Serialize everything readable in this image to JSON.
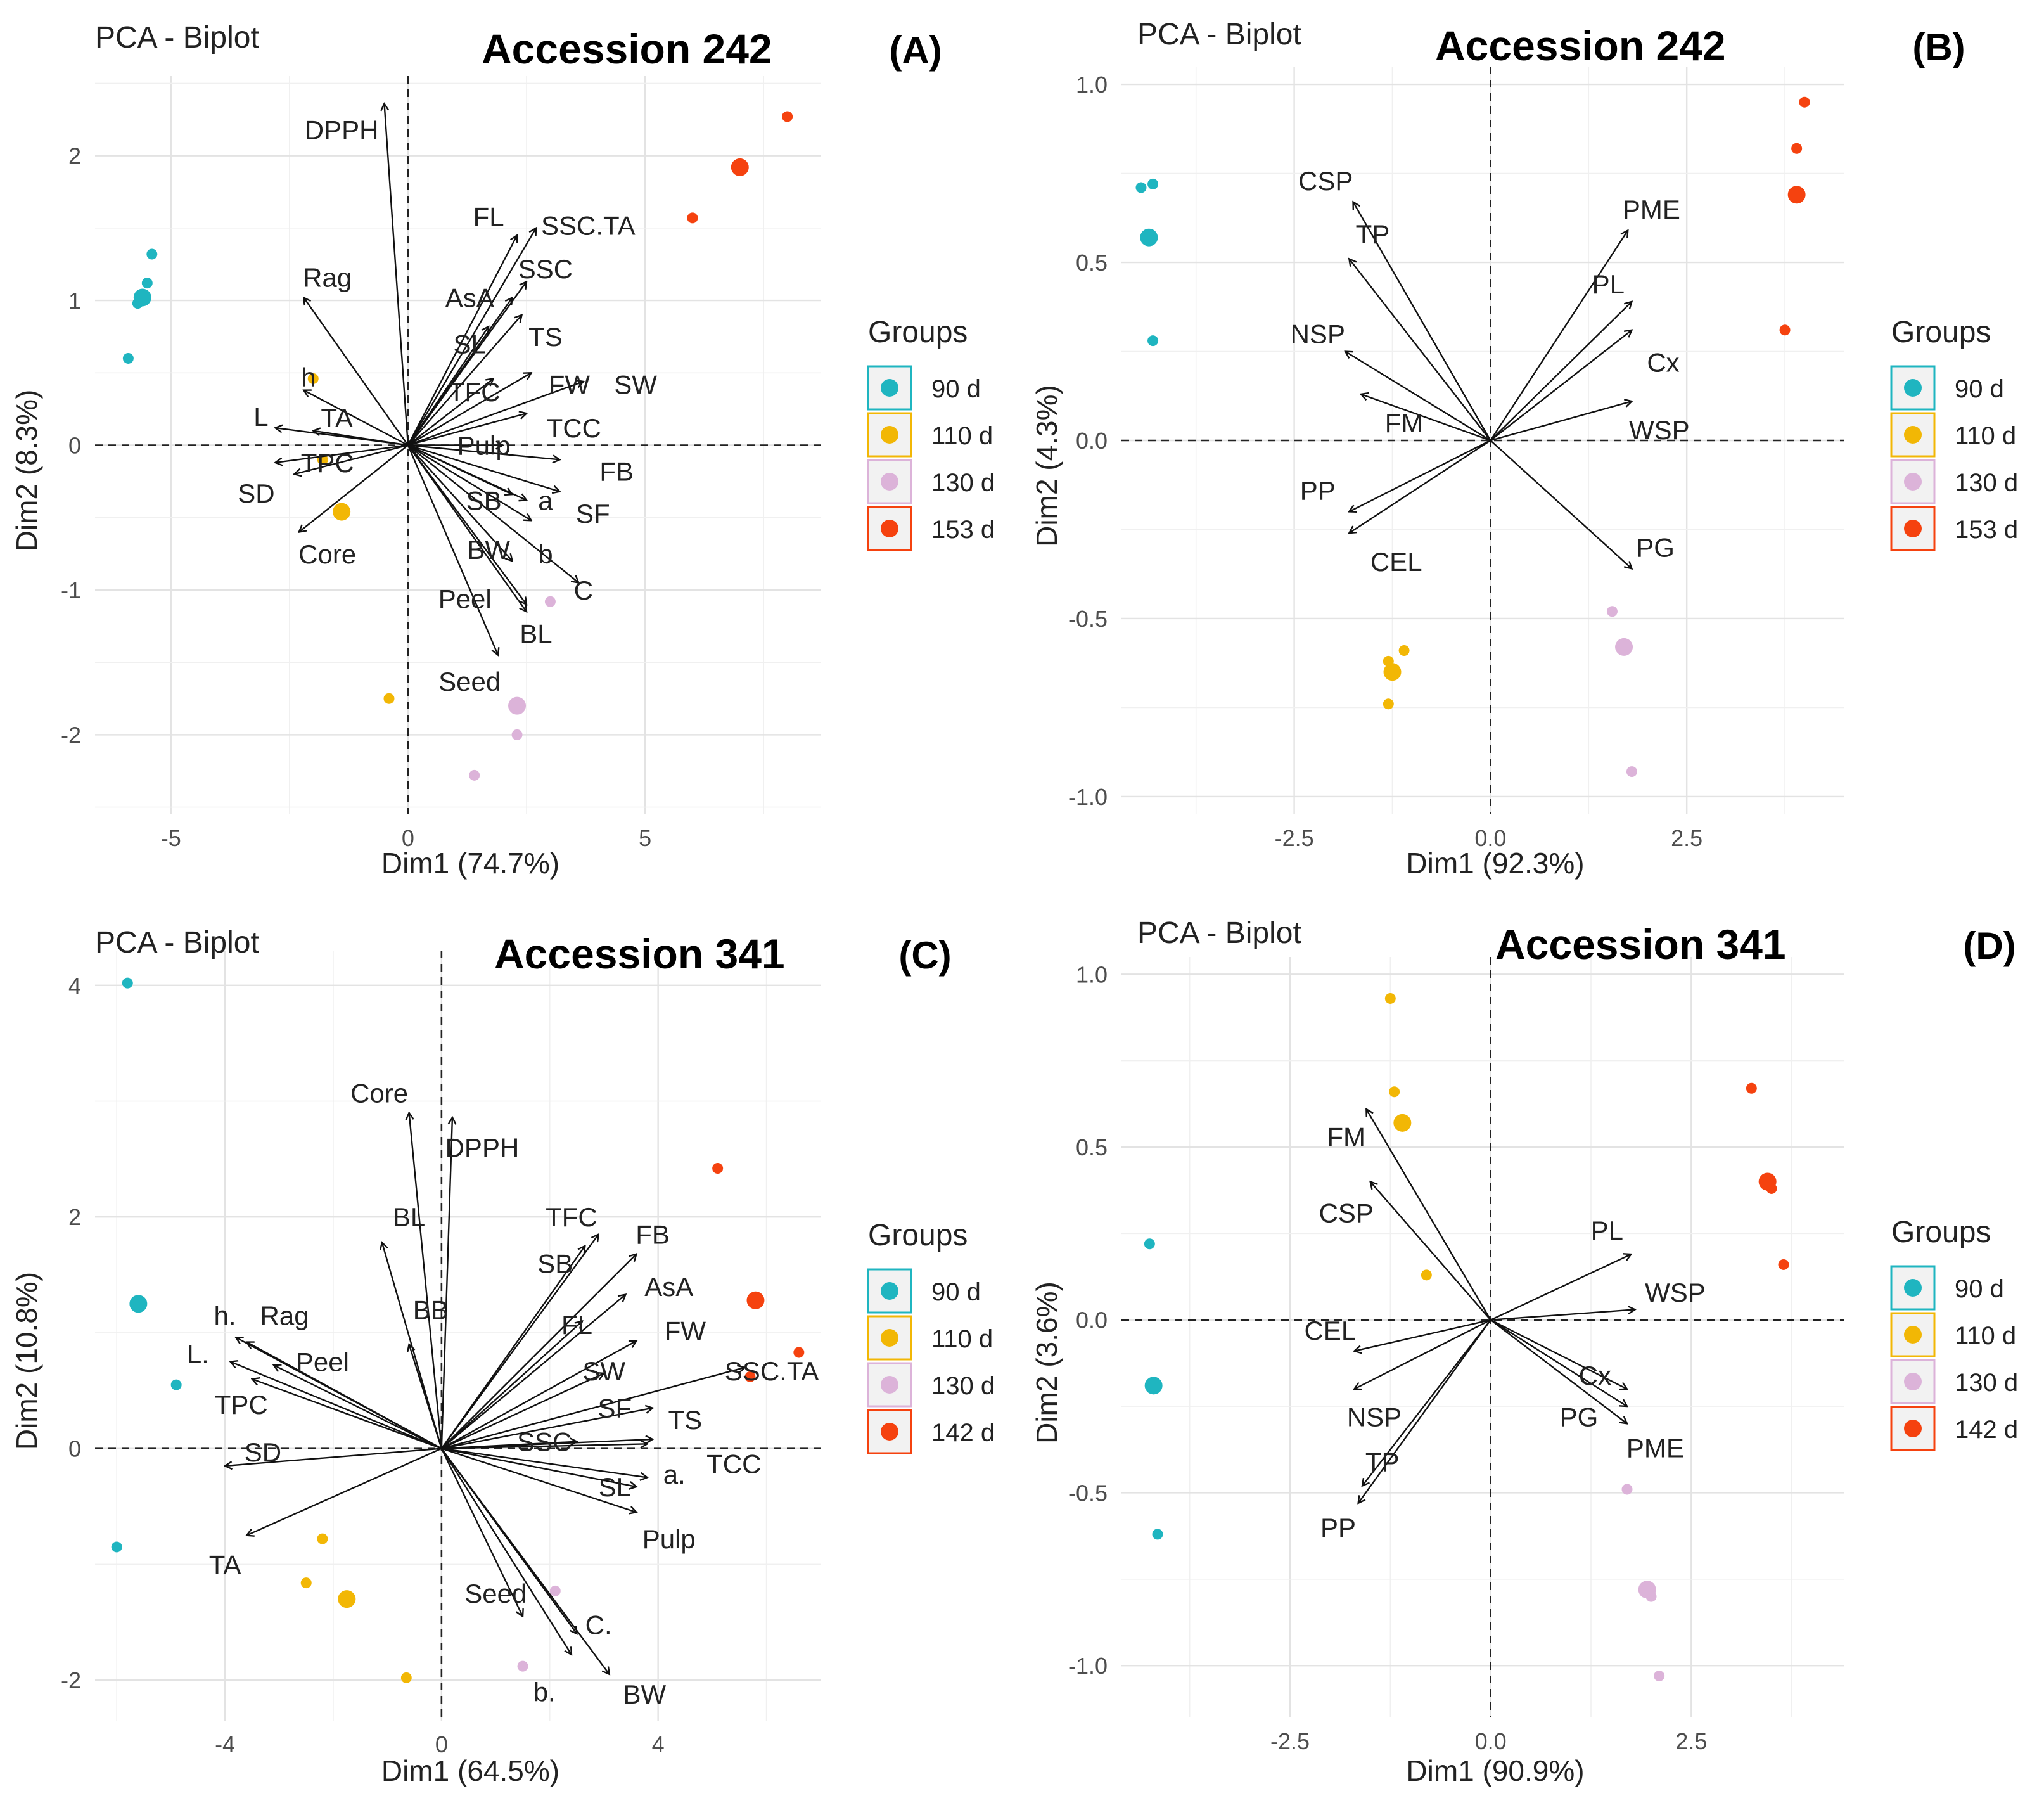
{
  "chart_data": [
    {
      "panel": "(A)",
      "type": "scatter",
      "title": "PCA - Biplot",
      "subtitle": "Accession 242",
      "xlabel": "Dim1 (74.7%)",
      "ylabel": "Dim2 (8.3%)",
      "xlim": [
        -6.6,
        8.7
      ],
      "ylim": [
        -2.55,
        2.55
      ],
      "xticks": [
        -5,
        0,
        5
      ],
      "yticks": [
        -2,
        -1,
        0,
        1,
        2
      ],
      "xtick_labels": [
        "-5",
        "0",
        "5"
      ],
      "ytick_labels": [
        "-2",
        "-1",
        "0",
        "1",
        "2"
      ],
      "grid": true,
      "legend": {
        "title": "Groups",
        "entries": [
          "90 d",
          "110 d",
          "130 d",
          "153 d"
        ],
        "position": "right"
      },
      "colors": [
        "#1fb5c0",
        "#f2b705",
        "#dcb3d9",
        "#f5420f"
      ],
      "points": [
        {
          "group": 0,
          "x": -5.6,
          "y": 1.02,
          "size": "mean"
        },
        {
          "group": 0,
          "x": -5.4,
          "y": 1.32
        },
        {
          "group": 0,
          "x": -5.5,
          "y": 1.12
        },
        {
          "group": 0,
          "x": -5.7,
          "y": 0.98
        },
        {
          "group": 0,
          "x": -5.9,
          "y": 0.6
        },
        {
          "group": 1,
          "x": -1.4,
          "y": -0.46,
          "size": "mean"
        },
        {
          "group": 1,
          "x": -2.0,
          "y": 0.46
        },
        {
          "group": 1,
          "x": -1.8,
          "y": -0.1
        },
        {
          "group": 1,
          "x": -0.4,
          "y": -1.75
        },
        {
          "group": 2,
          "x": 2.3,
          "y": -1.8,
          "size": "mean"
        },
        {
          "group": 2,
          "x": 3.0,
          "y": -1.08
        },
        {
          "group": 2,
          "x": 2.3,
          "y": -2.0
        },
        {
          "group": 2,
          "x": 1.4,
          "y": -2.28
        },
        {
          "group": 3,
          "x": 7.0,
          "y": 1.92,
          "size": "mean"
        },
        {
          "group": 3,
          "x": 8.0,
          "y": 2.27
        },
        {
          "group": 3,
          "x": 6.0,
          "y": 1.57
        }
      ],
      "vectors": [
        {
          "label": "DPPH",
          "x": -0.5,
          "y": 2.36,
          "lx": -1.4,
          "ly": 2.18
        },
        {
          "label": "FL",
          "x": 2.3,
          "y": 1.45,
          "lx": 1.7,
          "ly": 1.58
        },
        {
          "label": "SSC.TA",
          "x": 2.7,
          "y": 1.5,
          "lx": 3.8,
          "ly": 1.52
        },
        {
          "label": "SSC",
          "x": 2.5,
          "y": 1.13,
          "lx": 2.9,
          "ly": 1.22
        },
        {
          "label": "AsA",
          "x": 2.2,
          "y": 1.02,
          "lx": 1.3,
          "ly": 1.02
        },
        {
          "label": "Rag",
          "x": -2.2,
          "y": 1.02,
          "lx": -1.7,
          "ly": 1.16
        },
        {
          "label": "SL",
          "x": 1.7,
          "y": 0.82,
          "lx": 1.3,
          "ly": 0.7
        },
        {
          "label": "TS",
          "x": 2.4,
          "y": 0.9,
          "lx": 2.9,
          "ly": 0.75
        },
        {
          "label": "TFC",
          "x": 1.8,
          "y": 0.46,
          "lx": 1.4,
          "ly": 0.37
        },
        {
          "label": "FW",
          "x": 2.6,
          "y": 0.5,
          "lx": 3.4,
          "ly": 0.42
        },
        {
          "label": "SW",
          "x": 3.7,
          "y": 0.44,
          "lx": 4.8,
          "ly": 0.42
        },
        {
          "label": "h",
          "x": -2.2,
          "y": 0.38,
          "lx": -2.1,
          "ly": 0.47
        },
        {
          "label": "L",
          "x": -2.8,
          "y": 0.12,
          "lx": -3.1,
          "ly": 0.2
        },
        {
          "label": "TA",
          "x": -2.0,
          "y": 0.1,
          "lx": -1.5,
          "ly": 0.19
        },
        {
          "label": "TCC",
          "x": 2.5,
          "y": 0.22,
          "lx": 3.5,
          "ly": 0.12
        },
        {
          "label": "Pulp",
          "x": 2.0,
          "y": 0.0,
          "lx": 1.6,
          "ly": 0.0
        },
        {
          "label": "TPC",
          "x": -2.8,
          "y": -0.12,
          "lx": -1.7,
          "ly": -0.12
        },
        {
          "label": "FB",
          "x": 3.2,
          "y": -0.1,
          "lx": 4.4,
          "ly": -0.18
        },
        {
          "label": "SD",
          "x": -2.4,
          "y": -0.2,
          "lx": -3.2,
          "ly": -0.33
        },
        {
          "label": "SB",
          "x": 2.2,
          "y": -0.34,
          "lx": 1.6,
          "ly": -0.38
        },
        {
          "label": "a",
          "x": 2.5,
          "y": -0.38,
          "lx": 2.9,
          "ly": -0.38
        },
        {
          "label": "SF",
          "x": 3.2,
          "y": -0.32,
          "lx": 3.9,
          "ly": -0.47
        },
        {
          "label": "Core",
          "x": -2.3,
          "y": -0.6,
          "lx": -1.7,
          "ly": -0.75
        },
        {
          "label": "BW",
          "x": 2.2,
          "y": -0.8,
          "lx": 1.7,
          "ly": -0.72
        },
        {
          "label": "b",
          "x": 2.6,
          "y": -0.52,
          "lx": 2.9,
          "ly": -0.75
        },
        {
          "label": "C",
          "x": 3.6,
          "y": -0.95,
          "lx": 3.7,
          "ly": -1.0
        },
        {
          "label": "Peel",
          "x": 2.5,
          "y": -1.1,
          "lx": 1.2,
          "ly": -1.06
        },
        {
          "label": "BL",
          "x": 2.5,
          "y": -1.15,
          "lx": 2.7,
          "ly": -1.3
        },
        {
          "label": "Seed",
          "x": 1.9,
          "y": -1.45,
          "lx": 1.3,
          "ly": -1.63
        }
      ]
    },
    {
      "panel": "(B)",
      "type": "scatter",
      "title": "PCA - Biplot",
      "subtitle": "Accession 242",
      "xlabel": "Dim1 (92.3%)",
      "ylabel": "Dim2 (4.3%)",
      "xlim": [
        -4.7,
        4.5
      ],
      "ylim": [
        -1.05,
        1.05
      ],
      "xticks": [
        -2.5,
        0,
        2.5
      ],
      "yticks": [
        -1.0,
        -0.5,
        0.0,
        0.5,
        1.0
      ],
      "xtick_labels": [
        "-2.5",
        "0.0",
        "2.5"
      ],
      "ytick_labels": [
        "-1.0",
        "-0.5",
        "0.0",
        "0.5",
        "1.0"
      ],
      "grid": true,
      "legend": {
        "title": "Groups",
        "entries": [
          "90 d",
          "110 d",
          "130 d",
          "153 d"
        ],
        "position": "right"
      },
      "colors": [
        "#1fb5c0",
        "#f2b705",
        "#dcb3d9",
        "#f5420f"
      ],
      "points": [
        {
          "group": 0,
          "x": -4.35,
          "y": 0.57,
          "size": "mean"
        },
        {
          "group": 0,
          "x": -4.45,
          "y": 0.71
        },
        {
          "group": 0,
          "x": -4.3,
          "y": 0.72
        },
        {
          "group": 0,
          "x": -4.3,
          "y": 0.28
        },
        {
          "group": 1,
          "x": -1.25,
          "y": -0.65,
          "size": "mean"
        },
        {
          "group": 1,
          "x": -1.3,
          "y": -0.62
        },
        {
          "group": 1,
          "x": -1.1,
          "y": -0.59
        },
        {
          "group": 1,
          "x": -1.3,
          "y": -0.74
        },
        {
          "group": 2,
          "x": 1.7,
          "y": -0.58,
          "size": "mean"
        },
        {
          "group": 2,
          "x": 1.55,
          "y": -0.48
        },
        {
          "group": 2,
          "x": 1.8,
          "y": -0.93
        },
        {
          "group": 3,
          "x": 3.9,
          "y": 0.69,
          "size": "mean"
        },
        {
          "group": 3,
          "x": 4.0,
          "y": 0.95
        },
        {
          "group": 3,
          "x": 3.9,
          "y": 0.82
        },
        {
          "group": 3,
          "x": 3.75,
          "y": 0.31
        }
      ],
      "vectors": [
        {
          "label": "CSP",
          "x": -1.75,
          "y": 0.67,
          "lx": -2.1,
          "ly": 0.73
        },
        {
          "label": "TP",
          "x": -1.8,
          "y": 0.51,
          "lx": -1.5,
          "ly": 0.58
        },
        {
          "label": "NSP",
          "x": -1.85,
          "y": 0.25,
          "lx": -2.2,
          "ly": 0.3
        },
        {
          "label": "FM",
          "x": -1.65,
          "y": 0.13,
          "lx": -1.1,
          "ly": 0.05
        },
        {
          "label": "PP",
          "x": -1.8,
          "y": -0.2,
          "lx": -2.2,
          "ly": -0.14
        },
        {
          "label": "CEL",
          "x": -1.8,
          "y": -0.26,
          "lx": -1.2,
          "ly": -0.34
        },
        {
          "label": "PME",
          "x": 1.75,
          "y": 0.59,
          "lx": 2.05,
          "ly": 0.65
        },
        {
          "label": "PL",
          "x": 1.8,
          "y": 0.39,
          "lx": 1.5,
          "ly": 0.44
        },
        {
          "label": "Cx",
          "x": 1.8,
          "y": 0.31,
          "lx": 2.2,
          "ly": 0.22
        },
        {
          "label": "WSP",
          "x": 1.8,
          "y": 0.11,
          "lx": 2.15,
          "ly": 0.03
        },
        {
          "label": "PG",
          "x": 1.8,
          "y": -0.36,
          "lx": 2.1,
          "ly": -0.3
        }
      ]
    },
    {
      "panel": "(C)",
      "type": "scatter",
      "title": "PCA - Biplot",
      "subtitle": "Accession 341",
      "xlabel": "Dim1 (64.5%)",
      "ylabel": "Dim2 (10.8%)",
      "xlim": [
        -6.4,
        7.0
      ],
      "ylim": [
        -2.35,
        4.3
      ],
      "xticks": [
        -4,
        0,
        4
      ],
      "yticks": [
        -2,
        0,
        2,
        4
      ],
      "xtick_labels": [
        "-4",
        "0",
        "4"
      ],
      "ytick_labels": [
        "-2",
        "0",
        "2",
        "4"
      ],
      "grid": true,
      "legend": {
        "title": "Groups",
        "entries": [
          "90 d",
          "110 d",
          "130 d",
          "142 d"
        ],
        "position": "right"
      },
      "colors": [
        "#1fb5c0",
        "#f2b705",
        "#dcb3d9",
        "#f5420f"
      ],
      "points": [
        {
          "group": 0,
          "x": -5.6,
          "y": 1.25,
          "size": "mean"
        },
        {
          "group": 0,
          "x": -5.8,
          "y": 4.02
        },
        {
          "group": 0,
          "x": -4.9,
          "y": 0.55
        },
        {
          "group": 0,
          "x": -6.0,
          "y": -0.85
        },
        {
          "group": 1,
          "x": -1.75,
          "y": -1.3,
          "size": "mean"
        },
        {
          "group": 1,
          "x": -2.2,
          "y": -0.78
        },
        {
          "group": 1,
          "x": -2.5,
          "y": -1.16
        },
        {
          "group": 1,
          "x": -0.65,
          "y": -1.98
        },
        {
          "group": 2,
          "x": 1.5,
          "y": -1.88
        },
        {
          "group": 2,
          "x": 2.1,
          "y": -1.23
        },
        {
          "group": 3,
          "x": 5.8,
          "y": 1.28,
          "size": "mean"
        },
        {
          "group": 3,
          "x": 5.1,
          "y": 2.42
        },
        {
          "group": 3,
          "x": 6.6,
          "y": 0.83
        },
        {
          "group": 3,
          "x": 5.7,
          "y": 0.62
        }
      ],
      "vectors": [
        {
          "label": "Core",
          "x": -0.6,
          "y": 2.9,
          "lx": -1.15,
          "ly": 3.07
        },
        {
          "label": "DPPH",
          "x": 0.2,
          "y": 2.86,
          "lx": 0.75,
          "ly": 2.6
        },
        {
          "label": "BL",
          "x": -1.1,
          "y": 1.78,
          "lx": -0.6,
          "ly": 2.0
        },
        {
          "label": "BB",
          "x": -0.6,
          "y": 0.9,
          "lx": -0.2,
          "ly": 1.2
        },
        {
          "label": "TFC",
          "x": 2.65,
          "y": 1.75,
          "lx": 2.4,
          "ly": 2.0
        },
        {
          "label": "SB",
          "x": 2.9,
          "y": 1.85,
          "lx": 2.1,
          "ly": 1.6
        },
        {
          "label": "FB",
          "x": 3.6,
          "y": 1.68,
          "lx": 3.9,
          "ly": 1.85
        },
        {
          "label": "AsA",
          "x": 3.4,
          "y": 1.33,
          "lx": 4.2,
          "ly": 1.4
        },
        {
          "label": "FL",
          "x": 2.6,
          "y": 1.1,
          "lx": 2.5,
          "ly": 1.07
        },
        {
          "label": "FW",
          "x": 3.6,
          "y": 0.93,
          "lx": 4.5,
          "ly": 1.02
        },
        {
          "label": "SW",
          "x": 3.0,
          "y": 0.65,
          "lx": 3.0,
          "ly": 0.67
        },
        {
          "label": "SSC.TA",
          "x": 5.6,
          "y": 0.7,
          "lx": 6.1,
          "ly": 0.67
        },
        {
          "label": "SF",
          "x": 3.9,
          "y": 0.35,
          "lx": 3.2,
          "ly": 0.35
        },
        {
          "label": "TS",
          "x": 3.9,
          "y": 0.08,
          "lx": 4.5,
          "ly": 0.25
        },
        {
          "label": "SSC",
          "x": 2.5,
          "y": 0.06,
          "lx": 1.9,
          "ly": 0.06
        },
        {
          "label": "TCC",
          "x": 3.8,
          "y": 0.04,
          "lx": 5.4,
          "ly": -0.13
        },
        {
          "label": "a.",
          "x": 3.8,
          "y": -0.25,
          "lx": 4.3,
          "ly": -0.22
        },
        {
          "label": "SL",
          "x": 3.6,
          "y": -0.33,
          "lx": 3.2,
          "ly": -0.33
        },
        {
          "label": "Pulp",
          "x": 3.6,
          "y": -0.55,
          "lx": 4.2,
          "ly": -0.78
        },
        {
          "label": "Seed",
          "x": 1.5,
          "y": -1.45,
          "lx": 1.0,
          "ly": -1.25
        },
        {
          "label": "C.",
          "x": 2.5,
          "y": -1.6,
          "lx": 2.9,
          "ly": -1.52
        },
        {
          "label": "b.",
          "x": 2.4,
          "y": -1.78,
          "lx": 1.9,
          "ly": -2.1
        },
        {
          "label": "BW",
          "x": 3.1,
          "y": -1.95,
          "lx": 3.75,
          "ly": -2.12
        },
        {
          "label": "h.",
          "x": -3.8,
          "y": 0.96,
          "lx": -4.0,
          "ly": 1.15
        },
        {
          "label": "Rag",
          "x": -3.6,
          "y": 0.92,
          "lx": -2.9,
          "ly": 1.15
        },
        {
          "label": "L.",
          "x": -3.9,
          "y": 0.75,
          "lx": -4.5,
          "ly": 0.82
        },
        {
          "label": "Peel",
          "x": -3.1,
          "y": 0.72,
          "lx": -2.2,
          "ly": 0.75
        },
        {
          "label": "TPC",
          "x": -3.5,
          "y": 0.6,
          "lx": -3.7,
          "ly": 0.38
        },
        {
          "label": "SD",
          "x": -4.0,
          "y": -0.15,
          "lx": -3.3,
          "ly": -0.03
        },
        {
          "label": "TA",
          "x": -3.6,
          "y": -0.75,
          "lx": -4.0,
          "ly": -1.0
        }
      ]
    },
    {
      "panel": "(D)",
      "type": "scatter",
      "title": "PCA - Biplot",
      "subtitle": "Accession 341",
      "xlabel": "Dim1 (90.9%)",
      "ylabel": "Dim2 (3.6%)",
      "xlim": [
        -4.6,
        4.4
      ],
      "ylim": [
        -1.15,
        1.05
      ],
      "xticks": [
        -2.5,
        0,
        2.5
      ],
      "yticks": [
        -1.0,
        -0.5,
        0.0,
        0.5,
        1.0
      ],
      "xtick_labels": [
        "-2.5",
        "0.0",
        "2.5"
      ],
      "ytick_labels": [
        "-1.0",
        "-0.5",
        "0.0",
        "0.5",
        "1.0"
      ],
      "grid": true,
      "legend": {
        "title": "Groups",
        "entries": [
          "90 d",
          "110 d",
          "130 d",
          "142 d"
        ],
        "position": "right"
      },
      "colors": [
        "#1fb5c0",
        "#f2b705",
        "#dcb3d9",
        "#f5420f"
      ],
      "points": [
        {
          "group": 0,
          "x": -4.2,
          "y": -0.19,
          "size": "mean"
        },
        {
          "group": 0,
          "x": -4.25,
          "y": 0.22
        },
        {
          "group": 0,
          "x": -4.15,
          "y": -0.62
        },
        {
          "group": 1,
          "x": -1.1,
          "y": 0.57,
          "size": "mean"
        },
        {
          "group": 1,
          "x": -1.25,
          "y": 0.93
        },
        {
          "group": 1,
          "x": -1.2,
          "y": 0.66
        },
        {
          "group": 1,
          "x": -0.8,
          "y": 0.13
        },
        {
          "group": 2,
          "x": 1.95,
          "y": -0.78,
          "size": "mean"
        },
        {
          "group": 2,
          "x": 1.7,
          "y": -0.49
        },
        {
          "group": 2,
          "x": 2.0,
          "y": -0.8
        },
        {
          "group": 2,
          "x": 2.1,
          "y": -1.03
        },
        {
          "group": 3,
          "x": 3.45,
          "y": 0.4,
          "size": "mean"
        },
        {
          "group": 3,
          "x": 3.25,
          "y": 0.67
        },
        {
          "group": 3,
          "x": 3.5,
          "y": 0.38
        },
        {
          "group": 3,
          "x": 3.65,
          "y": 0.16
        }
      ],
      "vectors": [
        {
          "label": "FM",
          "x": -1.55,
          "y": 0.61,
          "lx": -1.8,
          "ly": 0.53
        },
        {
          "label": "CSP",
          "x": -1.5,
          "y": 0.4,
          "lx": -1.8,
          "ly": 0.31
        },
        {
          "label": "CEL",
          "x": -1.7,
          "y": -0.09,
          "lx": -2.0,
          "ly": -0.03
        },
        {
          "label": "NSP",
          "x": -1.7,
          "y": -0.2,
          "lx": -1.45,
          "ly": -0.28
        },
        {
          "label": "TP",
          "x": -1.6,
          "y": -0.48,
          "lx": -1.35,
          "ly": -0.41
        },
        {
          "label": "PP",
          "x": -1.65,
          "y": -0.53,
          "lx": -1.9,
          "ly": -0.6
        },
        {
          "label": "PL",
          "x": 1.75,
          "y": 0.19,
          "lx": 1.45,
          "ly": 0.26
        },
        {
          "label": "WSP",
          "x": 1.8,
          "y": 0.03,
          "lx": 2.3,
          "ly": 0.08
        },
        {
          "label": "Cx",
          "x": 1.7,
          "y": -0.2,
          "lx": 1.3,
          "ly": -0.16
        },
        {
          "label": "PG",
          "x": 1.7,
          "y": -0.25,
          "lx": 1.1,
          "ly": -0.28
        },
        {
          "label": "PME",
          "x": 1.7,
          "y": -0.3,
          "lx": 2.05,
          "ly": -0.37
        }
      ]
    }
  ]
}
